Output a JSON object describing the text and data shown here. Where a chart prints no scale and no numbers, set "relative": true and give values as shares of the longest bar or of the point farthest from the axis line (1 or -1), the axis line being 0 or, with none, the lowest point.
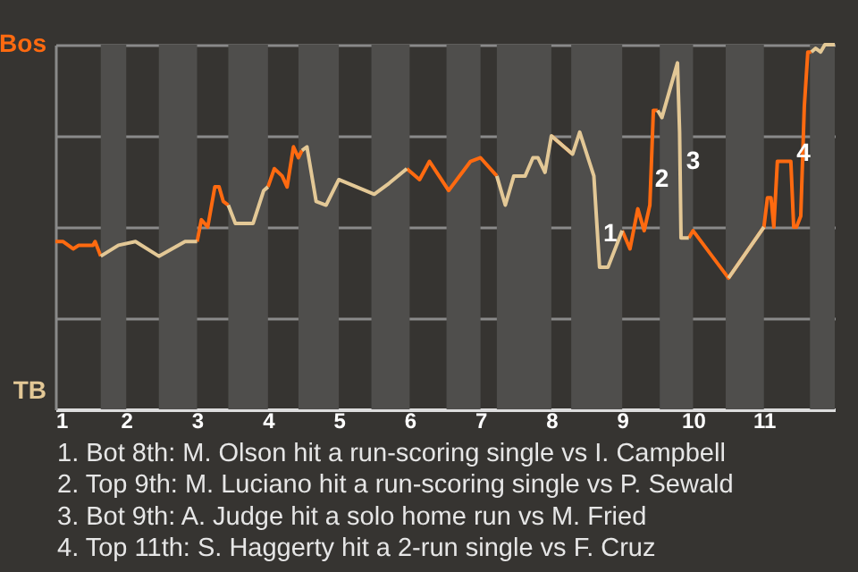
{
  "chart_data": {
    "type": "line",
    "relative": true,
    "x": [
      1.0,
      1.11,
      1.25,
      1.33,
      1.53,
      1.56,
      1.64,
      1.89,
      2.13,
      2.46,
      2.83,
      3.0,
      3.06,
      3.15,
      3.25,
      3.31,
      3.37,
      3.44,
      3.54,
      3.79,
      3.94,
      4.0,
      4.09,
      4.2,
      4.27,
      4.36,
      4.43,
      4.48,
      4.55,
      4.68,
      4.82,
      5.0,
      5.5,
      5.71,
      5.96,
      6.14,
      6.28,
      6.55,
      6.86,
      7.0,
      7.23,
      7.35,
      7.47,
      7.63,
      7.74,
      7.81,
      7.91,
      8.0,
      8.3,
      8.4,
      8.6,
      8.68,
      8.8,
      9.0,
      9.11,
      9.22,
      9.31,
      9.39,
      9.44,
      9.5,
      9.56,
      9.78,
      9.81,
      9.83,
      9.94,
      10.0,
      10.5,
      11.0,
      11.05,
      11.1,
      11.14,
      11.19,
      11.38,
      11.42,
      11.46,
      11.52,
      11.57,
      11.62,
      11.67,
      11.73,
      11.8,
      11.86,
      12.0
    ],
    "series": [
      {
        "color": "#ff6a10",
        "values": [
          0.46,
          0.46,
          0.44,
          0.45,
          0.45,
          0.46,
          0.42,
          null,
          null,
          null,
          null,
          0.46,
          0.52,
          0.5,
          0.61,
          0.61,
          0.57,
          0.56,
          null,
          null,
          null,
          0.61,
          0.66,
          0.64,
          0.61,
          0.72,
          0.69,
          0.71,
          null,
          null,
          null,
          null,
          null,
          null,
          0.66,
          0.63,
          0.68,
          0.6,
          0.68,
          0.69,
          0.64,
          null,
          null,
          null,
          null,
          null,
          null,
          0.75,
          0.7,
          null,
          null,
          null,
          null,
          0.49,
          0.44,
          0.55,
          0.49,
          0.56,
          0.82,
          0.82,
          null,
          null,
          null,
          null,
          0.47,
          0.49,
          0.36,
          0.5,
          0.58,
          0.58,
          0.5,
          0.68,
          0.68,
          0.5,
          0.5,
          0.53,
          0.83,
          0.98,
          0.98,
          null,
          null,
          null,
          null
        ]
      },
      {
        "color": "#e3c896",
        "values": [
          null,
          null,
          null,
          null,
          null,
          null,
          0.42,
          0.45,
          0.46,
          0.42,
          0.46,
          0.46,
          null,
          null,
          null,
          null,
          null,
          0.56,
          0.51,
          0.51,
          0.6,
          0.61,
          null,
          null,
          null,
          null,
          null,
          0.71,
          0.72,
          0.57,
          0.56,
          0.63,
          0.59,
          0.62,
          0.66,
          null,
          null,
          null,
          null,
          null,
          0.64,
          0.56,
          0.64,
          0.64,
          0.69,
          0.69,
          0.65,
          0.75,
          0.7,
          0.76,
          0.64,
          0.39,
          0.39,
          0.49,
          null,
          null,
          null,
          null,
          null,
          0.82,
          0.8,
          0.95,
          0.76,
          0.47,
          0.47,
          null,
          0.36,
          0.5,
          null,
          null,
          null,
          null,
          null,
          null,
          null,
          null,
          null,
          null,
          0.98,
          0.99,
          0.98,
          1.0,
          1.0
        ]
      }
    ],
    "xlim": [
      1,
      12
    ],
    "xticks": [
      1,
      2,
      3,
      4,
      5,
      6,
      7,
      8,
      9,
      10,
      11
    ],
    "grid": "y",
    "bands": [
      {
        "axis": "x",
        "from": 1.64,
        "to": 2,
        "color": "#4f4e4c"
      },
      {
        "axis": "x",
        "from": 2.46,
        "to": 3,
        "color": "#4f4e4c"
      },
      {
        "axis": "x",
        "from": 3.44,
        "to": 4,
        "color": "#4f4e4c"
      },
      {
        "axis": "x",
        "from": 4.43,
        "to": 5,
        "color": "#4f4e4c"
      },
      {
        "axis": "x",
        "from": 5.46,
        "to": 6,
        "color": "#4f4e4c"
      },
      {
        "axis": "x",
        "from": 6.52,
        "to": 7,
        "color": "#4f4e4c"
      },
      {
        "axis": "x",
        "from": 7.23,
        "to": 8,
        "color": "#4f4e4c"
      },
      {
        "axis": "x",
        "from": 8.28,
        "to": 9,
        "color": "#4f4e4c"
      },
      {
        "axis": "x",
        "from": 9.53,
        "to": 10,
        "color": "#4f4e4c"
      },
      {
        "axis": "x",
        "from": 10.46,
        "to": 11,
        "color": "#4f4e4c"
      },
      {
        "axis": "x",
        "from": 11.65,
        "to": 12,
        "color": "#4f4e4c"
      }
    ],
    "annotations": [
      "Bos",
      "TB",
      {
        "text": "1",
        "x": 8.83,
        "y": 0.48
      },
      {
        "text": "2",
        "x": 9.56,
        "y": 0.63
      },
      {
        "text": "3",
        "x": 10.0,
        "y": 0.68
      },
      {
        "text": "4",
        "x": 11.56,
        "y": 0.7
      },
      "1. Bot 8th: M. Olson hit a run-scoring single vs I. Campbell",
      "2. Top 9th: M. Luciano hit a run-scoring single vs P. Sewald",
      "3. Bot 9th: A. Judge hit a solo home run vs M. Fried",
      "4. Top 11th: S. Haggerty hit a 2-run single vs F. Cruz"
    ],
    "marker": "none",
    "line_style": "solid"
  }
}
